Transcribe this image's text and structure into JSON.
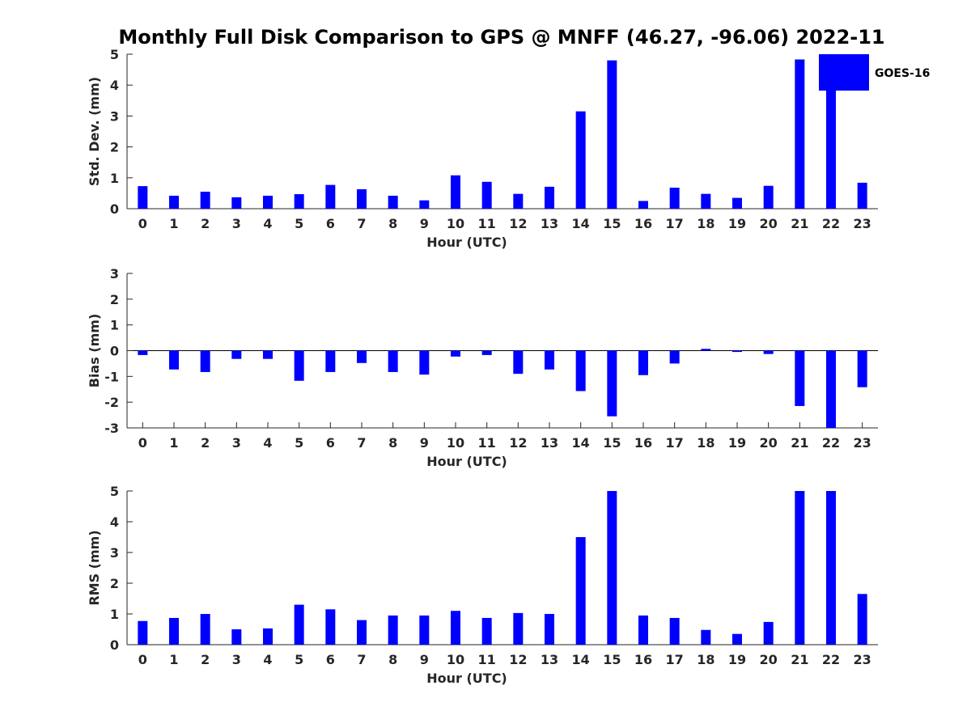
{
  "title": "Monthly Full Disk Comparison to GPS @ MNFF (46.27, -96.06) 2022-11",
  "bar_color": "#0000ff",
  "legend": {
    "label": "GOES-16",
    "color": "#0000ff"
  },
  "chart_data": [
    {
      "type": "bar",
      "name": "std-dev",
      "xlabel": "Hour (UTC)",
      "ylabel": "Std. Dev. (mm)",
      "ylim": [
        0,
        5
      ],
      "yticks": [
        "0",
        "1",
        "2",
        "3",
        "4",
        "5"
      ],
      "categories": [
        "0",
        "1",
        "2",
        "3",
        "4",
        "5",
        "6",
        "7",
        "8",
        "9",
        "10",
        "11",
        "12",
        "13",
        "14",
        "15",
        "16",
        "17",
        "18",
        "19",
        "20",
        "21",
        "22",
        "23"
      ],
      "series": [
        {
          "name": "GOES-16",
          "values": [
            0.73,
            0.42,
            0.55,
            0.37,
            0.42,
            0.47,
            0.77,
            0.63,
            0.42,
            0.27,
            1.08,
            0.87,
            0.48,
            0.71,
            3.15,
            4.8,
            0.25,
            0.68,
            0.48,
            0.35,
            0.74,
            4.83,
            4.35,
            0.84
          ]
        }
      ]
    },
    {
      "type": "bar",
      "name": "bias",
      "xlabel": "Hour (UTC)",
      "ylabel": "Bias (mm)",
      "ylim": [
        -3,
        3
      ],
      "yticks": [
        "-3",
        "-2",
        "-1",
        "0",
        "1",
        "2",
        "3"
      ],
      "categories": [
        "0",
        "1",
        "2",
        "3",
        "4",
        "5",
        "6",
        "7",
        "8",
        "9",
        "10",
        "11",
        "12",
        "13",
        "14",
        "15",
        "16",
        "17",
        "18",
        "19",
        "20",
        "21",
        "22",
        "23"
      ],
      "series": [
        {
          "name": "GOES-16",
          "values": [
            -0.17,
            -0.73,
            -0.83,
            -0.32,
            -0.32,
            -1.17,
            -0.83,
            -0.48,
            -0.83,
            -0.93,
            -0.23,
            -0.17,
            -0.9,
            -0.73,
            -1.57,
            -2.55,
            -0.95,
            -0.5,
            0.07,
            -0.05,
            -0.13,
            -2.15,
            -3.0,
            -1.42
          ]
        }
      ]
    },
    {
      "type": "bar",
      "name": "rms",
      "xlabel": "Hour (UTC)",
      "ylabel": "RMS (mm)",
      "ylim": [
        0,
        5
      ],
      "yticks": [
        "0",
        "1",
        "2",
        "3",
        "4",
        "5"
      ],
      "categories": [
        "0",
        "1",
        "2",
        "3",
        "4",
        "5",
        "6",
        "7",
        "8",
        "9",
        "10",
        "11",
        "12",
        "13",
        "14",
        "15",
        "16",
        "17",
        "18",
        "19",
        "20",
        "21",
        "22",
        "23"
      ],
      "series": [
        {
          "name": "GOES-16",
          "values": [
            0.77,
            0.87,
            1.0,
            0.5,
            0.53,
            1.3,
            1.15,
            0.8,
            0.95,
            0.95,
            1.1,
            0.87,
            1.03,
            1.0,
            3.5,
            5.0,
            0.95,
            0.87,
            0.48,
            0.35,
            0.74,
            5.0,
            5.0,
            1.65
          ]
        }
      ]
    }
  ]
}
